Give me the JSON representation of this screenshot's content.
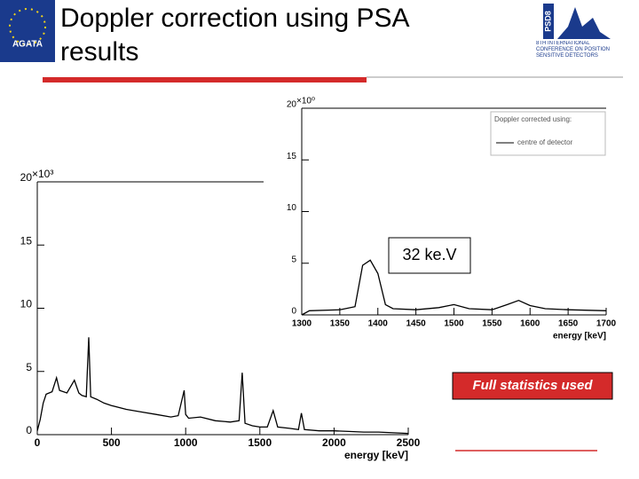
{
  "header": {
    "title": "Doppler correction using PSA results",
    "logos": {
      "left": "AGATA",
      "right": "PSD8",
      "right_caption": "8TH INTERNATIONAL CONFERENCE ON POSITION SENSITIVE DETECTORS"
    }
  },
  "chart_data": [
    {
      "type": "line",
      "color": "#000000",
      "x": [
        0,
        20,
        40,
        60,
        100,
        130,
        150,
        200,
        250,
        280,
        300,
        330,
        347,
        360,
        400,
        450,
        500,
        600,
        700,
        800,
        900,
        950,
        990,
        1000,
        1020,
        1100,
        1200,
        1300,
        1360,
        1381,
        1400,
        1450,
        1500,
        1550,
        1590,
        1620,
        1700,
        1760,
        1780,
        1800,
        1900,
        2000,
        2100,
        2200,
        2300,
        2400,
        2500
      ],
      "values": [
        0.3,
        1.2,
        2.5,
        3.2,
        3.4,
        4.5,
        3.5,
        3.3,
        4.3,
        3.3,
        3.1,
        3.0,
        7.7,
        3.0,
        2.8,
        2.5,
        2.3,
        2.0,
        1.8,
        1.6,
        1.4,
        1.5,
        3.5,
        1.6,
        1.3,
        1.4,
        1.1,
        1.0,
        1.1,
        4.9,
        0.9,
        0.7,
        0.6,
        0.6,
        1.9,
        0.6,
        0.5,
        0.4,
        1.7,
        0.4,
        0.3,
        0.3,
        0.25,
        0.2,
        0.2,
        0.15,
        0.1
      ],
      "xlim": [
        0,
        2500
      ],
      "xticks": [
        0,
        500,
        1000,
        1500,
        2000,
        2500
      ],
      "ylim": [
        0,
        20
      ],
      "yticks": [
        0,
        5,
        10,
        15,
        20
      ],
      "y_multiplier": "×10³",
      "x_label": "energy [keV]",
      "annotation": "Full statistics used"
    },
    {
      "type": "line",
      "x": [
        1300,
        1310,
        1350,
        1370,
        1380,
        1390,
        1400,
        1410,
        1420,
        1450,
        1480,
        1500,
        1520,
        1550,
        1570,
        1585,
        1600,
        1620,
        1650,
        1700
      ],
      "series": [
        {
          "name": "centre of detector",
          "color": "#000000",
          "values": [
            0,
            0.4,
            0.5,
            0.8,
            4.8,
            5.3,
            4.0,
            1.0,
            0.6,
            0.5,
            0.7,
            1.0,
            0.6,
            0.5,
            1.0,
            1.4,
            0.9,
            0.6,
            0.5,
            0.4
          ]
        }
      ],
      "legend_title": "Doppler corrected using:",
      "xlim": [
        1300,
        1700
      ],
      "xticks": [
        1300,
        1350,
        1400,
        1450,
        1500,
        1550,
        1600,
        1650,
        1700
      ],
      "ylim": [
        0,
        20
      ],
      "yticks": [
        0,
        5,
        10,
        15,
        20
      ],
      "y_multiplier": "×10⁰",
      "x_label": "energy [keV]",
      "annotation": "32 ke.V"
    }
  ]
}
